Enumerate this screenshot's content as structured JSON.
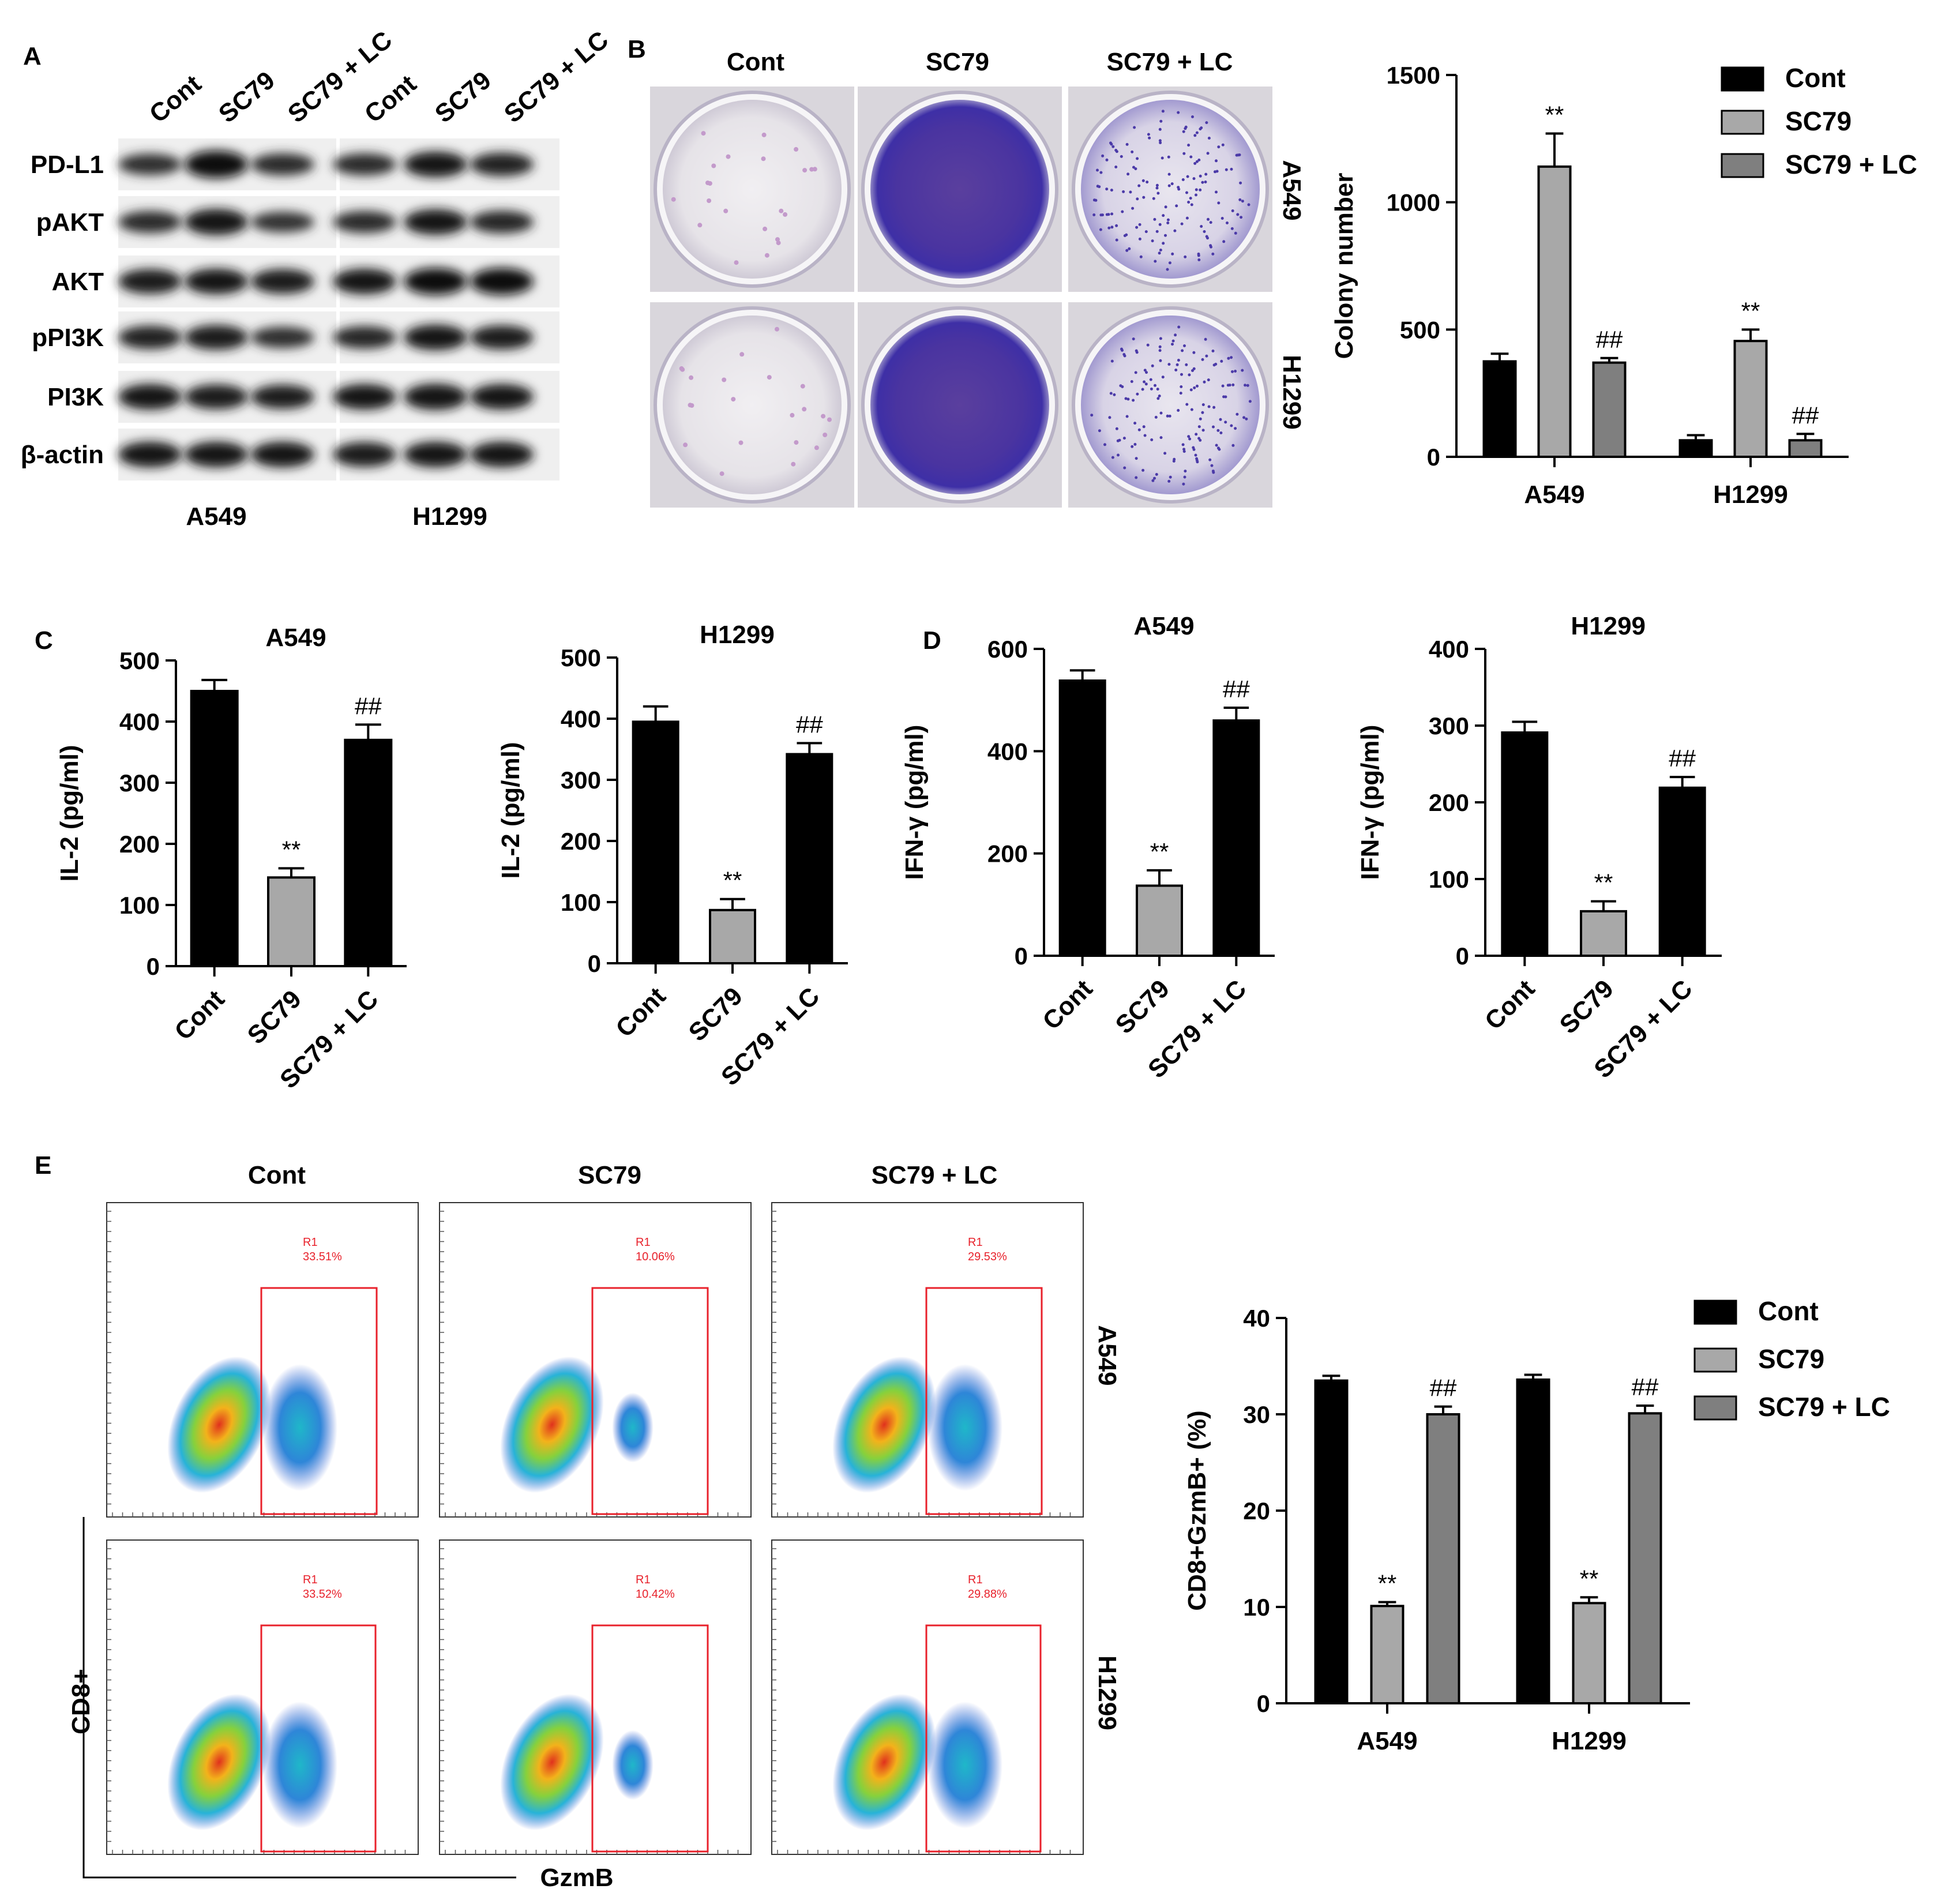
{
  "panel_letters": {
    "a": "A",
    "b": "B",
    "c": "C",
    "d": "D",
    "e": "E"
  },
  "groups": [
    "Cont",
    "SC79",
    "SC79 + LC"
  ],
  "colors": {
    "cont": "#000000",
    "sc79": "#a8a8a8",
    "sc79_lc": "#7f7f7f",
    "gate": "#e8212b",
    "axis": "#000000"
  },
  "panel_a": {
    "proteins": [
      "PD-L1",
      "pAKT",
      "AKT",
      "pPI3K",
      "PI3K",
      "β-actin"
    ],
    "lane_labels": [
      "Cont",
      "SC79",
      "SC79 + LC",
      "Cont",
      "SC79",
      "SC79 + LC"
    ],
    "cell_lines": [
      "A549",
      "H1299"
    ]
  },
  "panel_b": {
    "column_labels": [
      "Cont",
      "SC79",
      "SC79 + LC"
    ],
    "row_labels": [
      "A549",
      "H1299"
    ]
  },
  "panel_e": {
    "column_labels": [
      "Cont",
      "SC79",
      "SC79 + LC"
    ],
    "row_labels": [
      "A549",
      "H1299"
    ],
    "gate_name": "R1",
    "gate_values": [
      [
        "33.51%",
        "10.06%",
        "29.53%"
      ],
      [
        "33.52%",
        "10.42%",
        "29.88%"
      ]
    ],
    "y_axis_label": "CD8+",
    "x_axis_label": "GzmB"
  },
  "chart_data": [
    {
      "id": "b_colony",
      "type": "bar",
      "categories": [
        "A549",
        "H1299"
      ],
      "ylabel": "Colony number",
      "ylim": [
        0,
        1500
      ],
      "yticks": [
        0,
        500,
        1000,
        1500
      ],
      "series": [
        {
          "name": "Cont",
          "values": [
            375,
            65
          ],
          "errors": [
            30,
            20
          ]
        },
        {
          "name": "SC79",
          "values": [
            1140,
            455
          ],
          "errors": [
            130,
            45
          ]
        },
        {
          "name": "SC79 + LC",
          "values": [
            370,
            65
          ],
          "errors": [
            18,
            25
          ]
        }
      ],
      "annotations": [
        [
          "",
          "**",
          "##"
        ],
        [
          "",
          "**",
          "##"
        ]
      ],
      "legend": "top-right"
    },
    {
      "id": "c_a549",
      "type": "bar",
      "title": "A549",
      "categories": [
        "Cont",
        "SC79",
        "SC79 + LC"
      ],
      "ylabel": "IL-2 (pg/ml)",
      "ylim": [
        0,
        500
      ],
      "yticks": [
        0,
        100,
        200,
        300,
        400,
        500
      ],
      "values": [
        450,
        145,
        370
      ],
      "errors": [
        18,
        15,
        25
      ],
      "annotations": [
        "",
        "**",
        "##"
      ]
    },
    {
      "id": "c_h1299",
      "type": "bar",
      "title": "H1299",
      "categories": [
        "Cont",
        "SC79",
        "SC79 + LC"
      ],
      "ylabel": "IL-2 (pg/ml)",
      "ylim": [
        0,
        500
      ],
      "yticks": [
        0,
        100,
        200,
        300,
        400,
        500
      ],
      "values": [
        395,
        87,
        342
      ],
      "errors": [
        25,
        18,
        18
      ],
      "annotations": [
        "",
        "**",
        "##"
      ]
    },
    {
      "id": "d_a549",
      "type": "bar",
      "title": "A549",
      "categories": [
        "Cont",
        "SC79",
        "SC79 + LC"
      ],
      "ylabel": "IFN-γ (pg/ml)",
      "ylim": [
        0,
        600
      ],
      "yticks": [
        0,
        200,
        400,
        600
      ],
      "values": [
        538,
        137,
        460
      ],
      "errors": [
        20,
        30,
        25
      ],
      "annotations": [
        "",
        "**",
        "##"
      ]
    },
    {
      "id": "d_h1299",
      "type": "bar",
      "title": "H1299",
      "categories": [
        "Cont",
        "SC79",
        "SC79 + LC"
      ],
      "ylabel": "IFN-γ (pg/ml)",
      "ylim": [
        0,
        400
      ],
      "yticks": [
        0,
        100,
        200,
        300,
        400
      ],
      "values": [
        291,
        58,
        219
      ],
      "errors": [
        14,
        13,
        14
      ],
      "annotations": [
        "",
        "**",
        "##"
      ]
    },
    {
      "id": "e_cd8",
      "type": "bar",
      "categories": [
        "A549",
        "H1299"
      ],
      "ylabel": "CD8+GzmB+ (%)",
      "ylim": [
        0,
        40
      ],
      "yticks": [
        0,
        10,
        20,
        30,
        40
      ],
      "series": [
        {
          "name": "Cont",
          "values": [
            33.5,
            33.6
          ],
          "errors": [
            0.5,
            0.5
          ]
        },
        {
          "name": "SC79",
          "values": [
            10.1,
            10.4
          ],
          "errors": [
            0.4,
            0.6
          ]
        },
        {
          "name": "SC79 + LC",
          "values": [
            30.0,
            30.1
          ],
          "errors": [
            0.8,
            0.8
          ]
        }
      ],
      "annotations": [
        [
          "",
          "**",
          "##"
        ],
        [
          "",
          "**",
          "##"
        ]
      ],
      "legend": "top-right"
    }
  ]
}
